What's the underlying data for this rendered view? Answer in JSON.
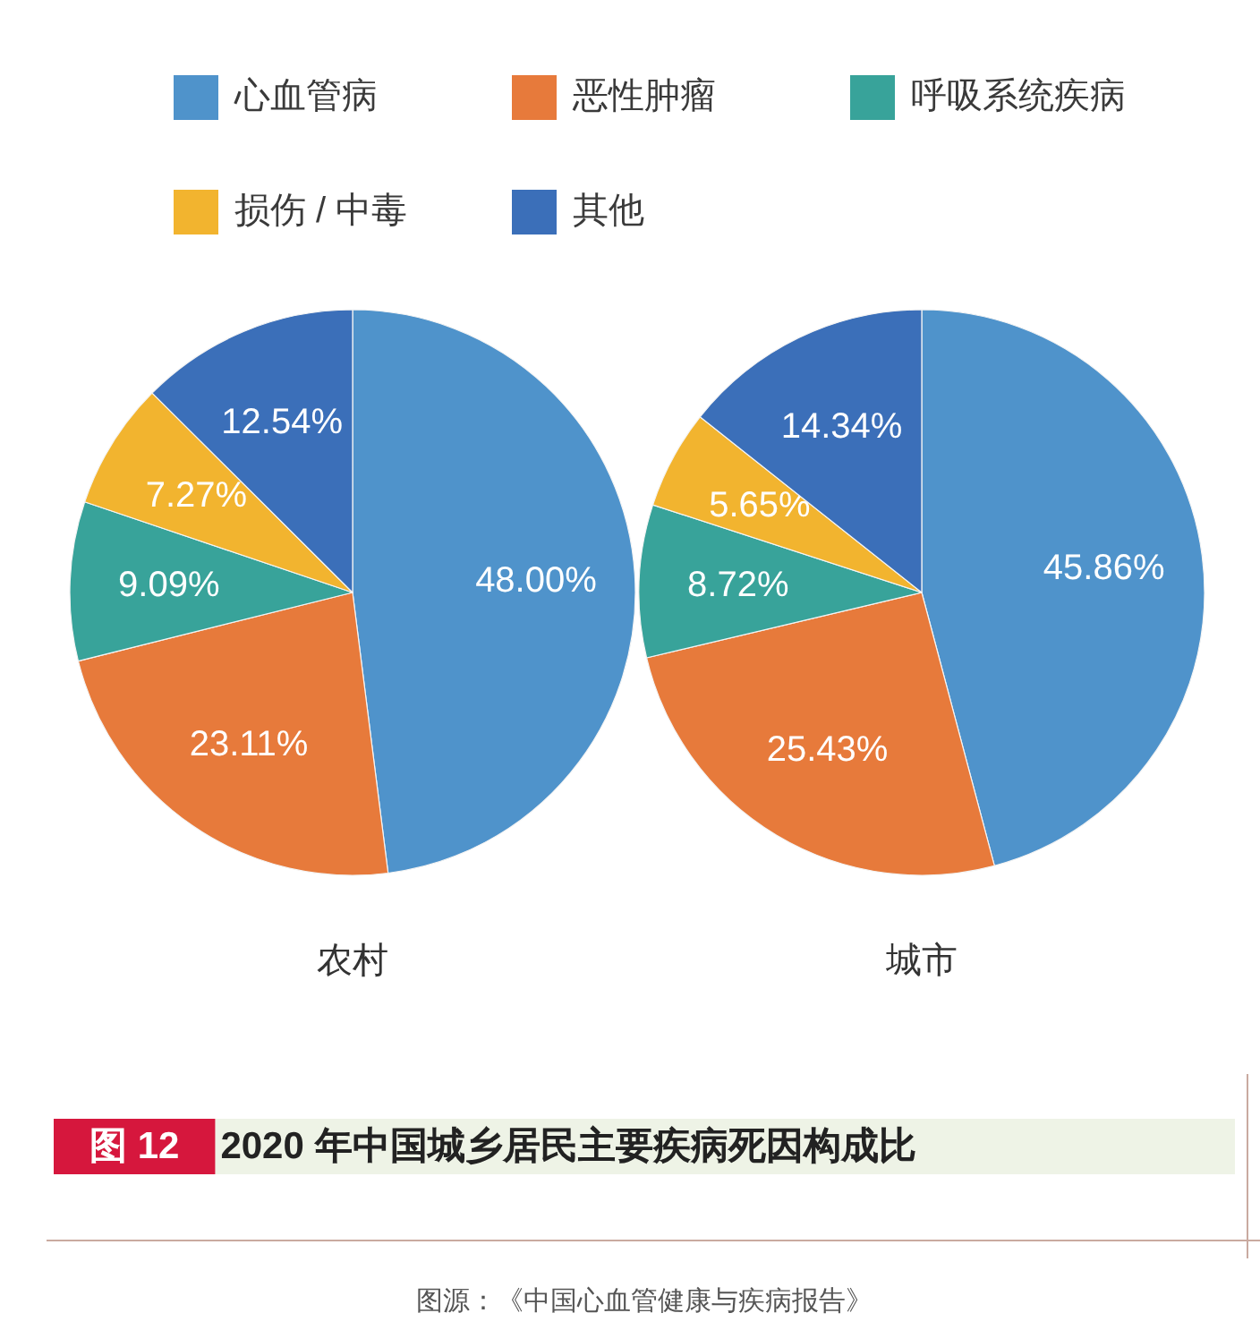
{
  "chart_data": [
    {
      "type": "pie",
      "title": "农村",
      "categories": [
        "心血管病",
        "恶性肿瘤",
        "呼吸系统疾病",
        "损伤 / 中毒",
        "其他"
      ],
      "values": [
        48.0,
        23.11,
        9.09,
        7.27,
        12.54
      ],
      "colors": [
        "#4f93cb",
        "#e77a3b",
        "#38a39a",
        "#f2b42f",
        "#3b6fb9"
      ],
      "value_labels": [
        "48.00%",
        "23.11%",
        "9.09%",
        "7.27%",
        "12.54%"
      ],
      "legend": "top"
    },
    {
      "type": "pie",
      "title": "城市",
      "categories": [
        null,
        null,
        null,
        null,
        null
      ],
      "values": [
        45.86,
        25.43,
        8.72,
        5.65,
        14.34
      ],
      "colors": [
        "#4f93cb",
        "#e77a3b",
        "#38a39a",
        "#f2b42f",
        "#3b6fb9"
      ],
      "value_labels": [
        "45.86%",
        "25.43%",
        "8.72%",
        "5.65%",
        "14.34%"
      ],
      "annotations": [
        "图 12",
        "2020 年中国城乡居民主要疾病死因构成比",
        "图源：《中国心血管健康与疾病报告》"
      ]
    }
  ]
}
